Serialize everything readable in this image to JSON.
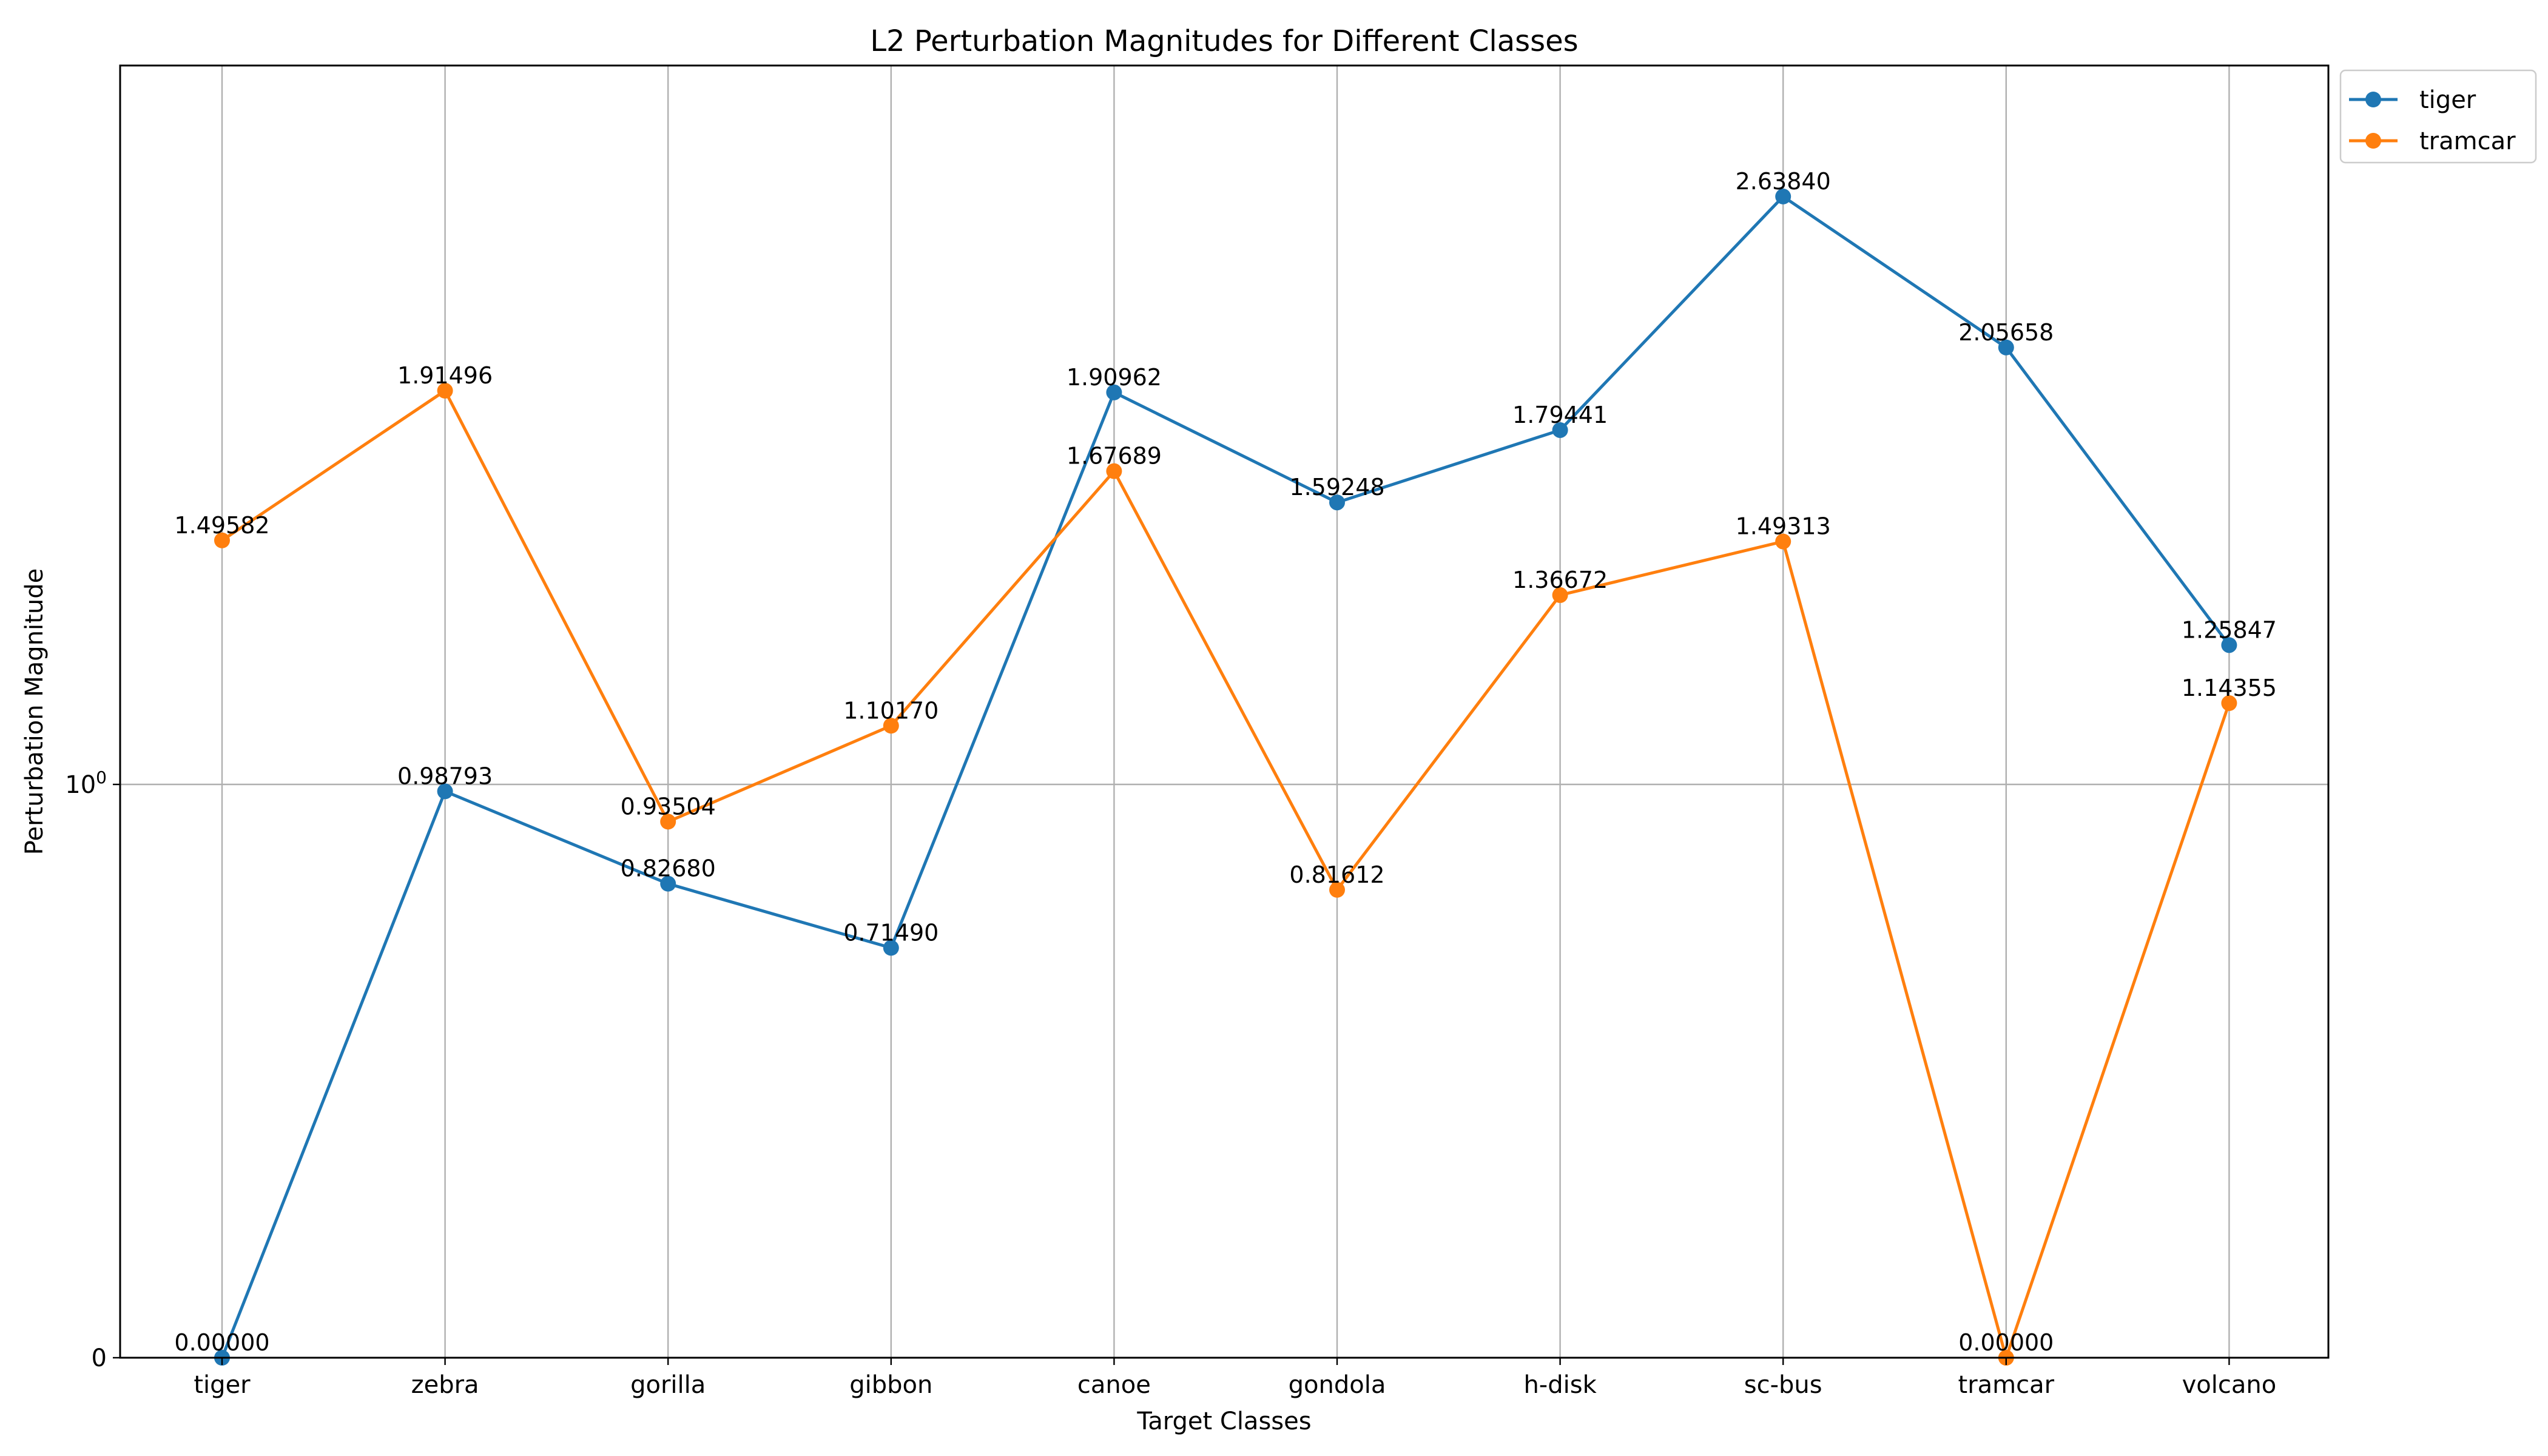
{
  "chart_data": {
    "type": "line",
    "title": "L2 Perturbation Magnitudes for Different Classes",
    "xlabel": "Target Classes",
    "ylabel": "Perturbation Magnitude",
    "categories": [
      "tiger",
      "zebra",
      "gorilla",
      "gibbon",
      "canoe",
      "gondola",
      "h-disk",
      "sc-bus",
      "tramcar",
      "volcano"
    ],
    "y_scale": "symlog",
    "y_ticks": [
      {
        "value": 0,
        "label": "0"
      },
      {
        "value": 1,
        "label": "10^0"
      }
    ],
    "grid": true,
    "legend_position": "outside top-right",
    "series": [
      {
        "name": "tiger",
        "color": "#1f77b4",
        "values": [
          0.0,
          0.98793,
          0.8268,
          0.7149,
          1.90962,
          1.59248,
          1.79441,
          2.6384,
          2.05658,
          1.25847
        ],
        "labels": [
          "0.00000",
          "0.98793",
          "0.82680",
          "0.71490",
          "1.90962",
          "1.59248",
          "1.79441",
          "2.63840",
          "2.05658",
          "1.25847"
        ]
      },
      {
        "name": "tramcar",
        "color": "#ff7f0e",
        "values": [
          1.49582,
          1.91496,
          0.93504,
          1.1017,
          1.67689,
          0.81612,
          1.36672,
          1.49313,
          0.0,
          1.14355
        ],
        "labels": [
          "1.49582",
          "1.91496",
          "0.93504",
          "1.10170",
          "1.67689",
          "0.81612",
          "1.36672",
          "1.49313",
          "0.00000",
          "1.14355"
        ]
      }
    ]
  }
}
